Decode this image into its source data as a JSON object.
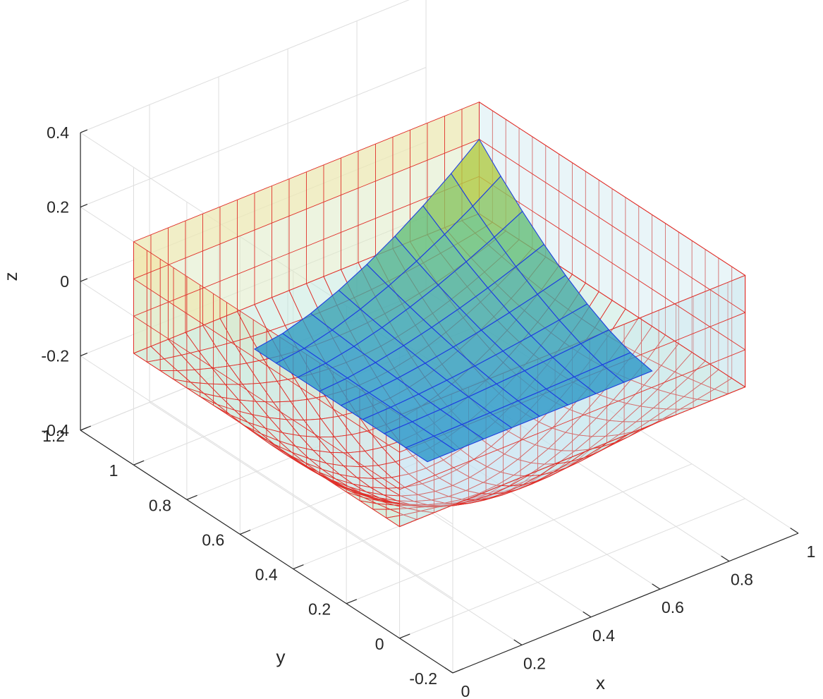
{
  "chart_data": {
    "type": "surface",
    "xlabel": "x",
    "ylabel": "y",
    "zlabel": "z",
    "xlim": [
      0,
      1
    ],
    "ylim": [
      -0.2,
      1.2
    ],
    "zlim": [
      -0.4,
      0.4
    ],
    "x_ticks": [
      "0",
      "0.2",
      "0.4",
      "0.6",
      "0.8",
      "1"
    ],
    "y_ticks": [
      "-0.2",
      "0",
      "0.2",
      "0.4",
      "0.6",
      "0.8",
      "1",
      "1.2"
    ],
    "z_ticks": [
      "-0.4",
      "-0.2",
      "0",
      "0.2",
      "0.4"
    ],
    "grid": true,
    "colormap": [
      "#c8e0f8",
      "#bfe8e6",
      "#d8eccb",
      "#f8e9b8",
      "#f8d2c8"
    ],
    "series": [
      {
        "mesh_color": "#e0302a",
        "domain": {
          "x": [
            0,
            1
          ],
          "y": [
            0,
            1
          ]
        },
        "z_min": -0.39,
        "rim_z_range": [
          -0.1,
          0.2
        ]
      },
      {
        "mesh_color": "#1f3fe0",
        "domain": {
          "x": [
            0.35,
            1
          ],
          "y": [
            0.35,
            1
          ]
        },
        "z_range": [
          -0.22,
          0.1
        ]
      }
    ]
  }
}
